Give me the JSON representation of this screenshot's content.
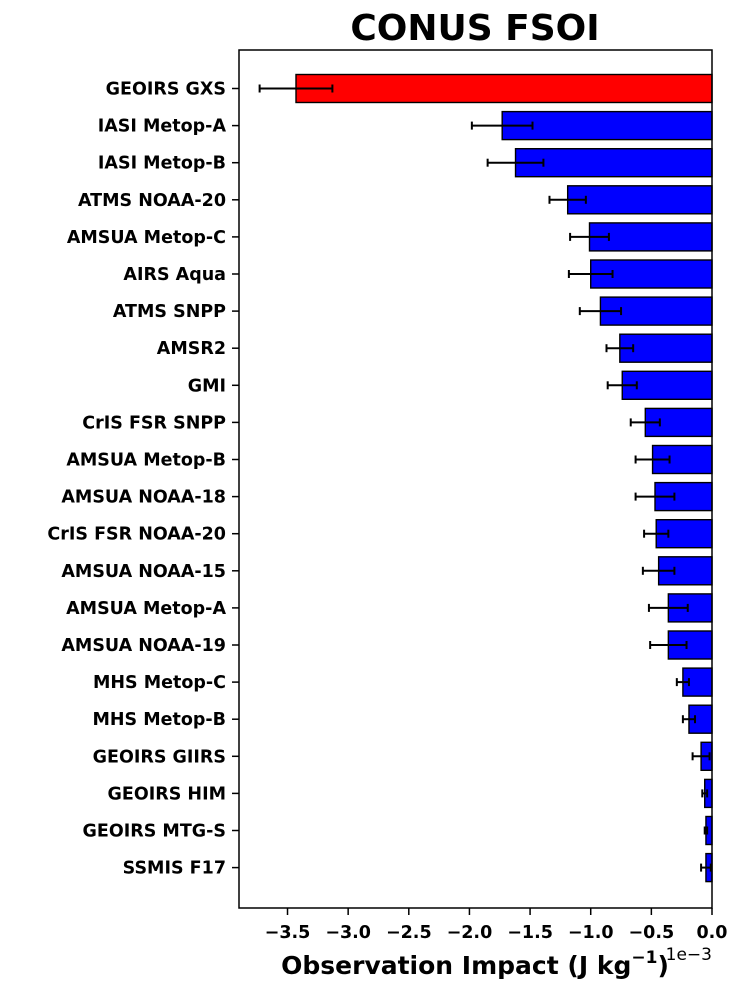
{
  "chart_data": {
    "type": "bar",
    "orientation": "horizontal",
    "title": "CONUS FSOI",
    "xlabel_main": "Observation Impact (J kg",
    "xlabel_sup": "−1",
    "xlabel_end": ")",
    "x_offset_label": "1e−3",
    "xlim": [
      -3.9,
      0.0
    ],
    "x_ticks": [
      -3.5,
      -3.0,
      -2.5,
      -2.0,
      -1.5,
      -1.0,
      -0.5,
      0.0
    ],
    "x_tick_labels": [
      "−3.5",
      "−3.0",
      "−2.5",
      "−2.0",
      "−1.5",
      "−1.0",
      "−0.5",
      "0.0"
    ],
    "highlight_color": "#ff0000",
    "bar_color": "#0000ff",
    "categories": [
      "GEOIRS GXS",
      "IASI Metop-A",
      "IASI Metop-B",
      "ATMS NOAA-20",
      "AMSUA Metop-C",
      "AIRS Aqua",
      "ATMS SNPP",
      "AMSR2",
      "GMI",
      "CrIS FSR SNPP",
      "AMSUA Metop-B",
      "AMSUA NOAA-18",
      "CrIS FSR NOAA-20",
      "AMSUA NOAA-15",
      "AMSUA Metop-A",
      "AMSUA NOAA-19",
      "MHS Metop-C",
      "MHS Metop-B",
      "GEOIRS GIIRS",
      "GEOIRS HIM",
      "GEOIRS MTG-S",
      "SSMIS F17"
    ],
    "values": [
      -3.43,
      -1.73,
      -1.62,
      -1.19,
      -1.01,
      -1.0,
      -0.92,
      -0.76,
      -0.74,
      -0.55,
      -0.49,
      -0.47,
      -0.46,
      -0.44,
      -0.36,
      -0.36,
      -0.24,
      -0.19,
      -0.09,
      -0.06,
      -0.05,
      -0.05
    ],
    "errors": [
      0.3,
      0.25,
      0.23,
      0.15,
      0.16,
      0.18,
      0.17,
      0.11,
      0.12,
      0.12,
      0.14,
      0.16,
      0.1,
      0.13,
      0.16,
      0.15,
      0.05,
      0.05,
      0.07,
      0.02,
      0.01,
      0.04
    ],
    "highlight_index": 0
  }
}
